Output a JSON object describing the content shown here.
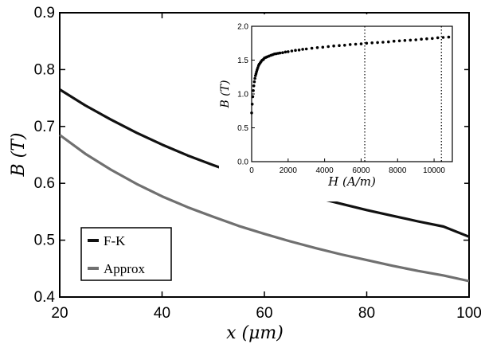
{
  "chart_data": [
    {
      "type": "line",
      "xlabel": "x (μm)",
      "ylabel": "B (T)",
      "xlim": [
        20,
        100
      ],
      "ylim": [
        0.4,
        0.9
      ],
      "x_ticks": [
        "20",
        "40",
        "60",
        "80",
        "100"
      ],
      "y_ticks": [
        "0.4",
        "0.5",
        "0.6",
        "0.7",
        "0.8",
        "0.9"
      ],
      "grid": false,
      "legend": "bottom-left",
      "series": [
        {
          "name": "F-K",
          "color": "#111111",
          "x": [
            20,
            25,
            30,
            35,
            40,
            45,
            50,
            55,
            60,
            65,
            70,
            75,
            80,
            85,
            90,
            95,
            100
          ],
          "y": [
            0.765,
            0.737,
            0.712,
            0.689,
            0.668,
            0.649,
            0.632,
            0.616,
            0.601,
            0.588,
            0.575,
            0.564,
            0.553,
            0.543,
            0.533,
            0.524,
            0.506
          ]
        },
        {
          "name": "Approx",
          "color": "#707070",
          "x": [
            20,
            25,
            30,
            35,
            40,
            45,
            50,
            55,
            60,
            65,
            70,
            75,
            80,
            85,
            90,
            95,
            100
          ],
          "y": [
            0.685,
            0.652,
            0.624,
            0.599,
            0.577,
            0.558,
            0.541,
            0.525,
            0.511,
            0.498,
            0.486,
            0.475,
            0.465,
            0.455,
            0.446,
            0.438,
            0.428
          ]
        }
      ]
    },
    {
      "type": "scatter",
      "inset": true,
      "xlabel": "H (A/m)",
      "ylabel": "B (T)",
      "xlim": [
        0,
        11000
      ],
      "ylim": [
        0,
        2.0
      ],
      "x_ticks": [
        "0",
        "2000",
        "4000",
        "6000",
        "8000",
        "10000"
      ],
      "y_ticks": [
        "0.0",
        "0.5",
        "1.0",
        "1.5",
        "2.0"
      ],
      "vlines": [
        6200,
        10400
      ],
      "series": [
        {
          "color": "#000000",
          "x": [
            0,
            30,
            60,
            90,
            120,
            150,
            180,
            210,
            240,
            270,
            300,
            340,
            380,
            420,
            470,
            520,
            580,
            640,
            700,
            780,
            860,
            950,
            1050,
            1150,
            1250,
            1350,
            1450,
            1550,
            1700,
            1850,
            2000,
            2200,
            2400,
            2600,
            2800,
            3000,
            3300,
            3600,
            3900,
            4200,
            4500,
            4800,
            5100,
            5400,
            5700,
            6000,
            6300,
            6600,
            6900,
            7200,
            7500,
            7800,
            8100,
            8400,
            8700,
            9000,
            9300,
            9600,
            9900,
            10200,
            10500,
            10800
          ],
          "y": [
            0.72,
            0.85,
            0.96,
            1.05,
            1.12,
            1.18,
            1.23,
            1.27,
            1.3,
            1.33,
            1.36,
            1.39,
            1.42,
            1.44,
            1.46,
            1.48,
            1.5,
            1.51,
            1.53,
            1.54,
            1.55,
            1.56,
            1.57,
            1.58,
            1.59,
            1.595,
            1.6,
            1.605,
            1.61,
            1.62,
            1.625,
            1.635,
            1.645,
            1.65,
            1.66,
            1.665,
            1.675,
            1.685,
            1.69,
            1.7,
            1.71,
            1.715,
            1.72,
            1.73,
            1.735,
            1.74,
            1.75,
            1.755,
            1.76,
            1.765,
            1.77,
            1.78,
            1.785,
            1.79,
            1.795,
            1.8,
            1.81,
            1.815,
            1.82,
            1.83,
            1.835,
            1.84
          ]
        }
      ]
    }
  ]
}
